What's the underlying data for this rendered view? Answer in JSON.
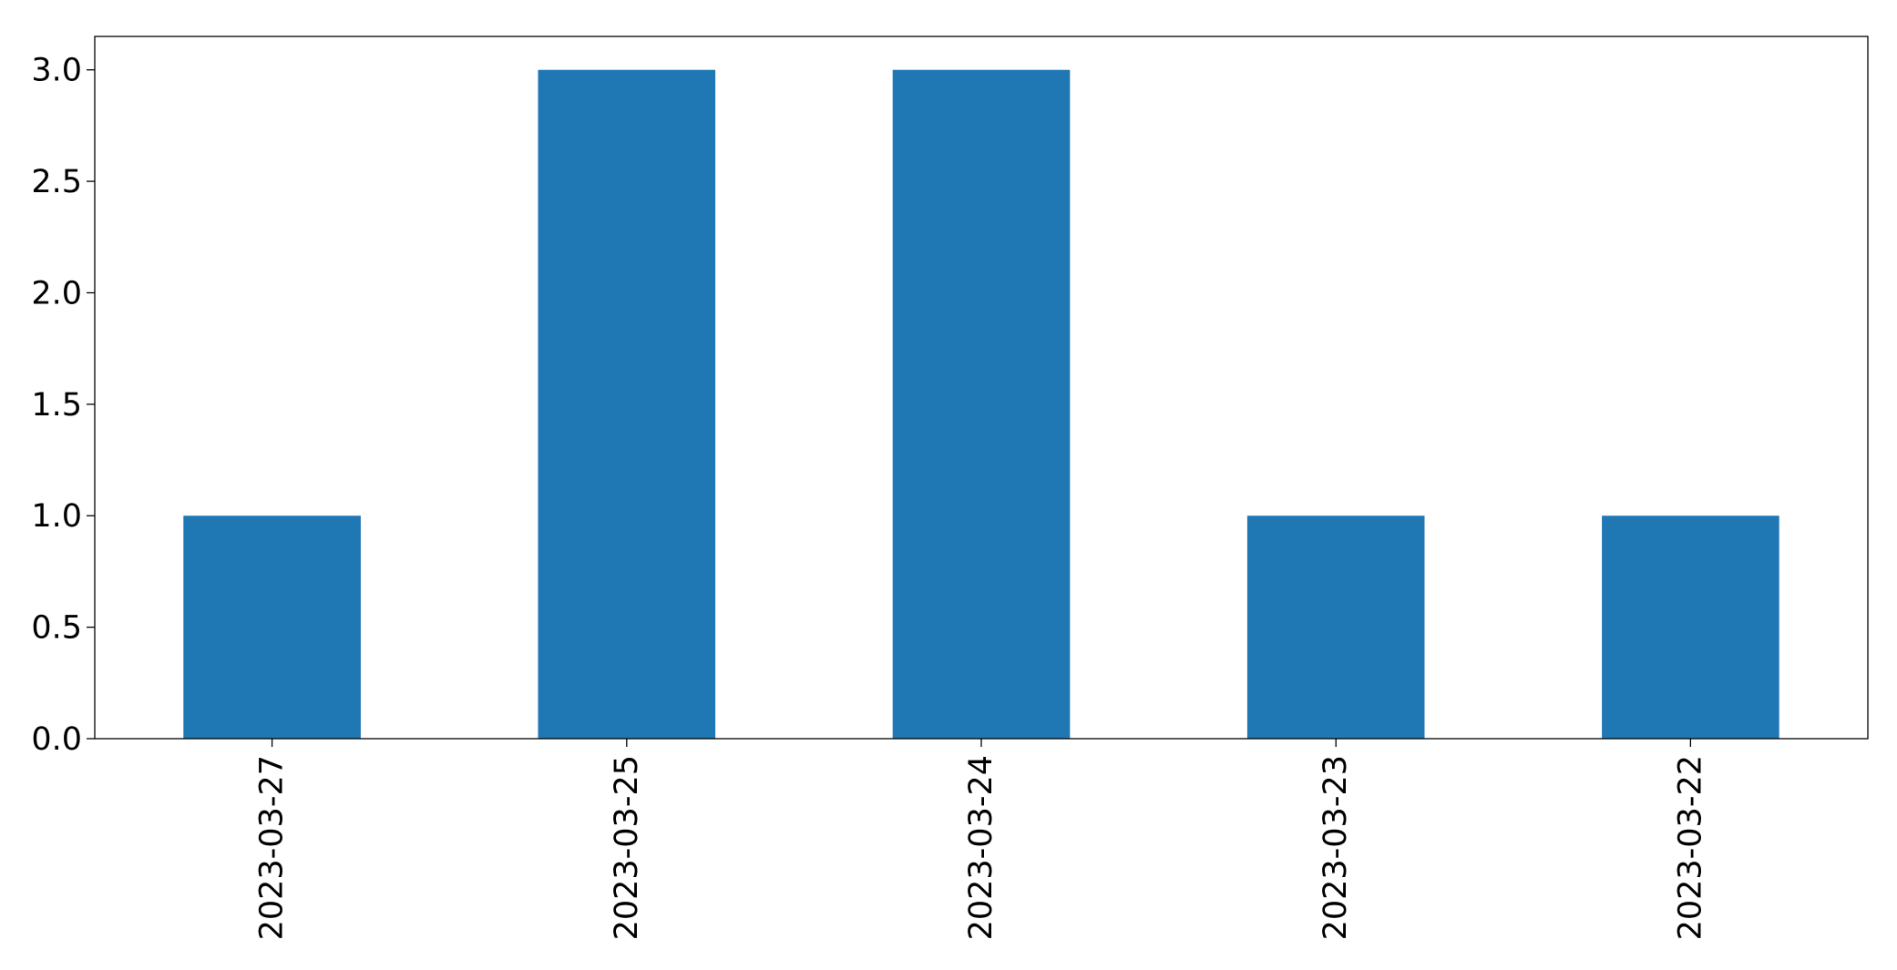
{
  "chart_data": {
    "type": "bar",
    "title": "",
    "xlabel": "",
    "ylabel": "",
    "categories": [
      "2023-03-27",
      "2023-03-25",
      "2023-03-24",
      "2023-03-23",
      "2023-03-22"
    ],
    "values": [
      1,
      3,
      3,
      1,
      1
    ],
    "ylim": [
      0,
      3.15
    ],
    "yticks": [
      "0.0",
      "0.5",
      "1.0",
      "1.5",
      "2.0",
      "2.5",
      "3.0"
    ],
    "bar_color": "#1f77b4",
    "grid": false,
    "legend": "none"
  }
}
